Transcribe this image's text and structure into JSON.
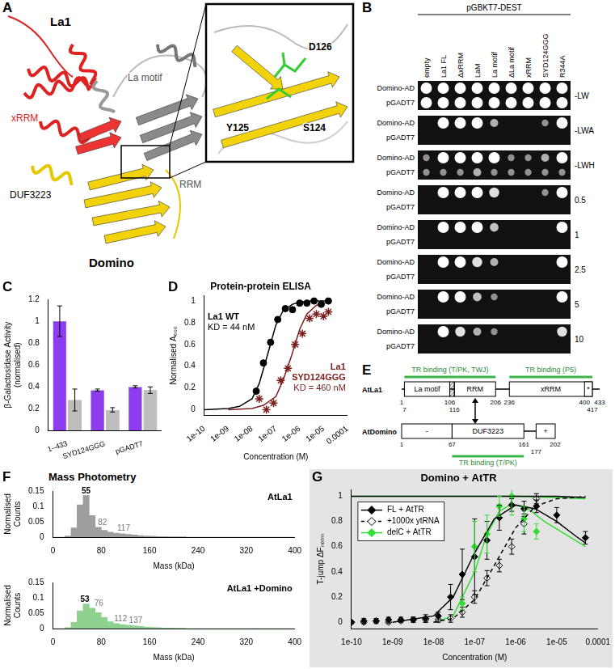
{
  "panel_labels": [
    "A",
    "B",
    "C",
    "D",
    "E",
    "F",
    "G"
  ],
  "panel_A": {
    "type": "diagram",
    "labels": [
      "La1",
      "xRRM",
      "La motif",
      "RRM",
      "DUF3223",
      "Domino"
    ],
    "inset_labels": [
      "D126",
      "Y125",
      "S124"
    ]
  },
  "panel_B": {
    "type": "table",
    "header": "pGBKT7-DEST",
    "columns": [
      "empty",
      "La1 FL",
      "ΔxRRM",
      "LaM",
      "La motif",
      "ΔLa motif",
      "xRRM",
      "SYD124GGG",
      "R344A"
    ],
    "rows": [
      "Domino-AD",
      "pGADT7"
    ],
    "conditions": [
      "-LW",
      "-LWA",
      "-LWH",
      "0.5",
      "1",
      "2.5",
      "5",
      "10"
    ],
    "growth": [
      [
        [
          1,
          1,
          1,
          1,
          1,
          1,
          1,
          1,
          1
        ],
        [
          1,
          1,
          1,
          1,
          1,
          1,
          1,
          1,
          1
        ]
      ],
      [
        [
          0,
          1,
          1,
          1,
          0.5,
          0,
          0,
          0.3,
          1
        ],
        [
          0,
          0,
          0,
          0,
          0,
          0,
          0,
          0,
          0
        ]
      ],
      [
        [
          0.3,
          1,
          1,
          1,
          1,
          0.3,
          0.3,
          0.5,
          1
        ],
        [
          0.3,
          0.3,
          0.3,
          0.5,
          0.3,
          0.3,
          0.3,
          0.3,
          0.3
        ]
      ],
      [
        [
          0,
          1,
          1,
          1,
          0.8,
          0,
          0,
          0.3,
          1
        ],
        [
          0,
          0,
          0,
          0,
          0,
          0,
          0,
          0,
          0
        ]
      ],
      [
        [
          0,
          1,
          1,
          1,
          0.6,
          0,
          0,
          0,
          1
        ],
        [
          0,
          0,
          0,
          0,
          0,
          0,
          0,
          0,
          0
        ]
      ],
      [
        [
          0,
          1,
          1,
          0.8,
          0.5,
          0,
          0,
          0,
          1
        ],
        [
          0,
          0,
          0,
          0,
          0,
          0,
          0,
          0,
          0
        ]
      ],
      [
        [
          0,
          1,
          1,
          0.6,
          0.3,
          0,
          0,
          0,
          1
        ],
        [
          0,
          0,
          0,
          0,
          0,
          0,
          0,
          0,
          0
        ]
      ],
      [
        [
          0,
          1,
          0.8,
          0.5,
          0.3,
          0,
          0,
          0,
          0.8
        ],
        [
          0,
          0,
          0,
          0,
          0,
          0,
          0,
          0,
          0
        ]
      ]
    ]
  },
  "panel_E": {
    "type": "diagram",
    "proteins": [
      {
        "name": "AtLa1",
        "residue_labels": [
          1,
          7,
          106,
          116,
          206,
          236,
          400,
          417,
          433
        ],
        "domains": [
          {
            "label": "La motif",
            "start": 7,
            "end": 106
          },
          {
            "label": "RRM",
            "start": 116,
            "end": 206
          },
          {
            "label": "xRRM",
            "start": 236,
            "end": 417
          },
          {
            "label": "*",
            "start": 400,
            "end": 417
          }
        ],
        "hatched": [
          106,
          116
        ],
        "binding": [
          {
            "label": "TR binding (T/PK, TWJ)",
            "start": 7,
            "end": 206
          },
          {
            "label": "TR binding (P5)",
            "start": 236,
            "end": 417
          }
        ]
      },
      {
        "name": "AtDomino",
        "residue_labels": [
          1,
          67,
          161,
          177,
          202
        ],
        "domains": [
          {
            "label": "-",
            "start": 1,
            "end": 67
          },
          {
            "label": "DUF3223",
            "start": 67,
            "end": 161
          },
          {
            "label": "+",
            "start": 177,
            "end": 202
          }
        ],
        "binding": [
          {
            "label": "TR binding (T/PK)",
            "start": 67,
            "end": 161
          }
        ]
      }
    ]
  },
  "panel_F": {
    "title": "Mass Photometry"
  },
  "chart_data": [
    {
      "type": "bar",
      "categories": [
        "1–433",
        "SYD124GGG",
        "pGADT7"
      ],
      "series": [
        {
          "color": "#8e3cf0",
          "values": [
            1,
            0.37,
            0.4
          ],
          "errors": [
            0.14,
            0.01,
            0.01
          ]
        },
        {
          "color": "#bdbdbd",
          "values": [
            0.28,
            0.19,
            0.37
          ],
          "errors": [
            0.1,
            0.02,
            0.03
          ]
        }
      ],
      "y_label": [
        "β-Galactosidase Activity",
        "(normalised)"
      ],
      "ylim": [
        0,
        1.2
      ],
      "yticks": [
        0,
        0.2,
        0.4,
        0.6,
        0.8,
        1,
        1.2
      ],
      "grid": false
    },
    {
      "type": "scatter",
      "title": "Protein-protein ELISA",
      "x_label": "Concentration (M)",
      "y_label": "Normalised A₆₀₀",
      "log": "x",
      "xlim": [
        1e-10,
        0.0001
      ],
      "xticks": [
        {
          "value": 1e-10,
          "label": "1e-10"
        },
        {
          "value": 1e-09,
          "label": "1e-09"
        },
        {
          "value": 1e-08,
          "label": "1e-08"
        },
        {
          "value": 1e-07,
          "label": "1e-07"
        },
        {
          "value": 1e-06,
          "label": "1e-06"
        },
        {
          "value": 1e-05,
          "label": "1e-05"
        },
        {
          "value": 0.0001,
          "label": "0.0001"
        }
      ],
      "ylim": [
        -0.05,
        1.05
      ],
      "yticks": [
        0,
        0.2,
        0.4,
        0.6,
        0.8,
        1
      ],
      "grid": false,
      "series": [
        {
          "name": "La1 WT",
          "annotation": "KD = 44 nM",
          "color": "#000000",
          "marker": "circle",
          "x": [
            1.5e-08,
            3e-08,
            6e-08,
            1.2e-07,
            2.5e-07,
            5e-07,
            1e-06,
            2e-06,
            4e-06,
            8e-06,
            1.6e-05
          ],
          "values": [
            0.17,
            0.43,
            0.62,
            0.83,
            0.93,
            0.92,
            0.98,
            0.98,
            1,
            0.97,
            1
          ],
          "fits": [
            {
              "x": [
                1e-10,
                1e-09,
                3e-09,
                1e-08,
                2e-08,
                4.4e-08,
                1e-07,
                2e-07,
                5e-07,
                1e-06,
                3e-06,
                1e-05,
                2e-05
              ],
              "values": [
                0,
                0.01,
                0.03,
                0.1,
                0.24,
                0.5,
                0.78,
                0.91,
                0.97,
                0.99,
                1,
                1,
                1
              ]
            }
          ]
        },
        {
          "name": "La1 SYD124GGG",
          "annotation": "KD = 460 nM",
          "color": "#7b1e1e",
          "marker": "star",
          "x": [
            2e-08,
            4e-08,
            8e-08,
            1.6e-07,
            3.2e-07,
            6.4e-07,
            1.3e-06,
            2.6e-06,
            5e-06,
            1e-05,
            1.6e-05
          ],
          "values": [
            0.1,
            0,
            0.06,
            0.27,
            0.38,
            0.6,
            0.7,
            0.84,
            0.88,
            0.86,
            0.9
          ],
          "fits": [
            {
              "x": [
                1e-09,
                1e-08,
                3e-08,
                1e-07,
                2e-07,
                4.6e-07,
                1e-06,
                2e-06,
                5e-06,
                1e-05,
                2e-05
              ],
              "values": [
                0,
                0.01,
                0.04,
                0.12,
                0.27,
                0.5,
                0.74,
                0.88,
                0.96,
                0.98,
                0.99
              ]
            }
          ]
        }
      ]
    },
    {
      "type": "histogram",
      "title": "AtLa1",
      "x_label": "Mass (kDa)",
      "y_label": "Normalised Counts",
      "color": "#9e9e9e",
      "bins": [
        0,
        10,
        20,
        30,
        40,
        50,
        60,
        70,
        80,
        90,
        100,
        110,
        120,
        130,
        140,
        150,
        160,
        170,
        180,
        190,
        200,
        210,
        220,
        230,
        240,
        250,
        260,
        270,
        280,
        290,
        300,
        310,
        320,
        330,
        340,
        350,
        360,
        370,
        380,
        390,
        400
      ],
      "counts": [
        0,
        0,
        0.004,
        0.03,
        0.105,
        0.135,
        0.07,
        0.032,
        0.022,
        0.016,
        0.013,
        0.011,
        0.009,
        0.007,
        0.005,
        0.004,
        0.003,
        0.002,
        0.002,
        0.001,
        0.001,
        0.001,
        0,
        0,
        0,
        0,
        0,
        0,
        0,
        0,
        0,
        0,
        0,
        0,
        0,
        0,
        0,
        0,
        0,
        0
      ],
      "peak_labels": [
        55,
        82,
        117
      ],
      "xlim": [
        0,
        400
      ],
      "xticks": [
        0,
        80,
        160,
        240,
        320,
        400
      ],
      "ylim": [
        0,
        0.15
      ],
      "yticks": [
        0,
        0.05,
        0.1,
        0.15
      ],
      "grid": false
    },
    {
      "type": "histogram",
      "title": "AtLa1 +Domino",
      "x_label": "Mass (kDa)",
      "y_label": "Normalised Counts",
      "color": "#8fd18f",
      "bins": [
        0,
        10,
        20,
        30,
        40,
        50,
        60,
        70,
        80,
        90,
        100,
        110,
        120,
        130,
        140,
        150,
        160,
        170,
        180,
        190,
        200,
        210,
        220,
        230,
        240,
        250,
        260,
        270,
        280,
        290,
        300,
        310,
        320,
        330,
        340,
        350,
        360,
        370,
        380,
        390,
        400
      ],
      "counts": [
        0,
        0,
        0.003,
        0.02,
        0.058,
        0.08,
        0.066,
        0.052,
        0.036,
        0.022,
        0.016,
        0.013,
        0.011,
        0.009,
        0.007,
        0.005,
        0.004,
        0.003,
        0.002,
        0.002,
        0.001,
        0.001,
        0,
        0,
        0,
        0,
        0,
        0,
        0,
        0,
        0,
        0,
        0,
        0,
        0,
        0,
        0,
        0,
        0,
        0
      ],
      "peak_labels": [
        53,
        76,
        112,
        137
      ],
      "xlim": [
        0,
        400
      ],
      "xticks": [
        0,
        80,
        160,
        240,
        320,
        400
      ],
      "ylim": [
        0,
        0.15
      ],
      "yticks": [
        0,
        0.05,
        0.1,
        0.15
      ],
      "grid": false
    },
    {
      "type": "scatter",
      "title": "Domino + AtTR",
      "x_label": "Concentration (M)",
      "y_label": "T-jump ΔFₙₒᵣₘ",
      "log": "x",
      "legend": "upper left",
      "xlim": [
        1e-10,
        0.0001
      ],
      "xticks": [
        {
          "value": 1e-10,
          "label": "1e-10"
        },
        {
          "value": 1e-09,
          "label": "1e-09"
        },
        {
          "value": 1e-08,
          "label": "1e-08"
        },
        {
          "value": 1e-07,
          "label": "1e-07"
        },
        {
          "value": 1e-06,
          "label": "1e-06"
        },
        {
          "value": 1e-05,
          "label": "1e-05"
        },
        {
          "value": 0.0001,
          "label": "0.0001"
        }
      ],
      "ylim": [
        -0.05,
        1.05
      ],
      "yticks": [
        0,
        0.2,
        0.4,
        0.6,
        0.8,
        1
      ],
      "grid": false,
      "series": [
        {
          "name": "FL + AtTR",
          "color": "#000000",
          "marker": "diamond",
          "line_style": "solid",
          "x": [
            1e-10,
            2e-10,
            4e-10,
            8e-10,
            1.6e-09,
            3.2e-09,
            6.4e-09,
            1.3e-08,
            2.6e-08,
            5e-08,
            1e-07,
            2e-07,
            4e-07,
            8e-07,
            1.6e-06,
            3.2e-06,
            1e-05,
            5e-05
          ],
          "values": [
            0,
            0.01,
            0.01,
            0.02,
            0.02,
            0.02,
            0.03,
            0.05,
            0.2,
            0.38,
            0.52,
            0.65,
            0.83,
            0.93,
            0.9,
            0.92,
            0.85,
            0.67
          ],
          "errors": [
            0.01,
            0.02,
            0.02,
            0.02,
            0.02,
            0.02,
            0.03,
            0.03,
            0.1,
            0.2,
            0.3,
            0.15,
            0.1,
            0.05,
            0.06,
            0.05,
            0.06,
            0.05
          ],
          "fits": [
            {
              "x": [
                1e-09,
                1e-08,
                3e-08,
                1e-07,
                3e-07,
                1e-06,
                3e-06,
                1e-05,
                3e-05,
                5e-05
              ],
              "values": [
                0,
                0.05,
                0.2,
                0.55,
                0.82,
                0.93,
                0.9,
                0.8,
                0.68,
                0.63
              ]
            },
            {
              "x": [
                1e-10,
                1e-07,
                1e-06,
                1e-05,
                5e-05
              ],
              "values": [
                1,
                1,
                1,
                0.999,
                0.99
              ]
            }
          ]
        },
        {
          "name": "+1000x ytRNA",
          "color": "#000000",
          "marker": "diamond-open",
          "line_style": "dashed",
          "x": [
            1e-10,
            2e-10,
            4e-10,
            8e-10,
            1.6e-09,
            3.2e-09,
            6.4e-09,
            1.3e-08,
            2.6e-08,
            5e-08,
            1e-07,
            2e-07,
            4e-07,
            8e-07,
            1.6e-06,
            3.2e-06
          ],
          "values": [
            0,
            0,
            0.01,
            0,
            0.01,
            0.02,
            0.02,
            0.02,
            0.03,
            0.08,
            0.2,
            0.35,
            0.45,
            0.6,
            0.78,
            0.98
          ],
          "errors": [
            0.01,
            0.01,
            0.01,
            0.01,
            0.01,
            0.02,
            0.02,
            0.02,
            0.03,
            0.04,
            0.05,
            0.06,
            0.05,
            0.06,
            0.08,
            0.04
          ],
          "fits": [
            {
              "x": [
                1e-08,
                3e-08,
                1e-07,
                3e-07,
                1e-06,
                3e-06,
                1e-05,
                3e-05,
                5e-05
              ],
              "values": [
                0,
                0.03,
                0.18,
                0.45,
                0.75,
                0.92,
                0.98,
                0.99,
                1
              ]
            }
          ]
        },
        {
          "name": "delC + AtTR",
          "color": "#33dd33",
          "marker": "diamond",
          "line_style": "solid",
          "x": [
            5e-08,
            1e-07,
            2e-07,
            4e-07,
            8e-07,
            1.6e-06,
            3.2e-06
          ],
          "values": [
            0.15,
            0.6,
            0.7,
            0.92,
            1,
            0.82,
            0.72
          ],
          "errors": [
            0.05,
            0.2,
            0.15,
            0.08,
            0.15,
            0.1,
            0.06
          ],
          "fits": [
            {
              "x": [
                1e-08,
                3e-08,
                1e-07,
                2e-07,
                4e-07,
                8e-07,
                2e-06,
                5e-06,
                1e-05,
                5e-05
              ],
              "values": [
                0,
                0.05,
                0.4,
                0.7,
                0.88,
                0.94,
                0.9,
                0.8,
                0.74,
                0.6
              ]
            },
            {
              "x": [
                1e-10,
                1e-07,
                1e-06,
                1e-05,
                5e-05
              ],
              "values": [
                1,
                1,
                1,
                0.99,
                0.98
              ]
            }
          ]
        }
      ]
    }
  ]
}
